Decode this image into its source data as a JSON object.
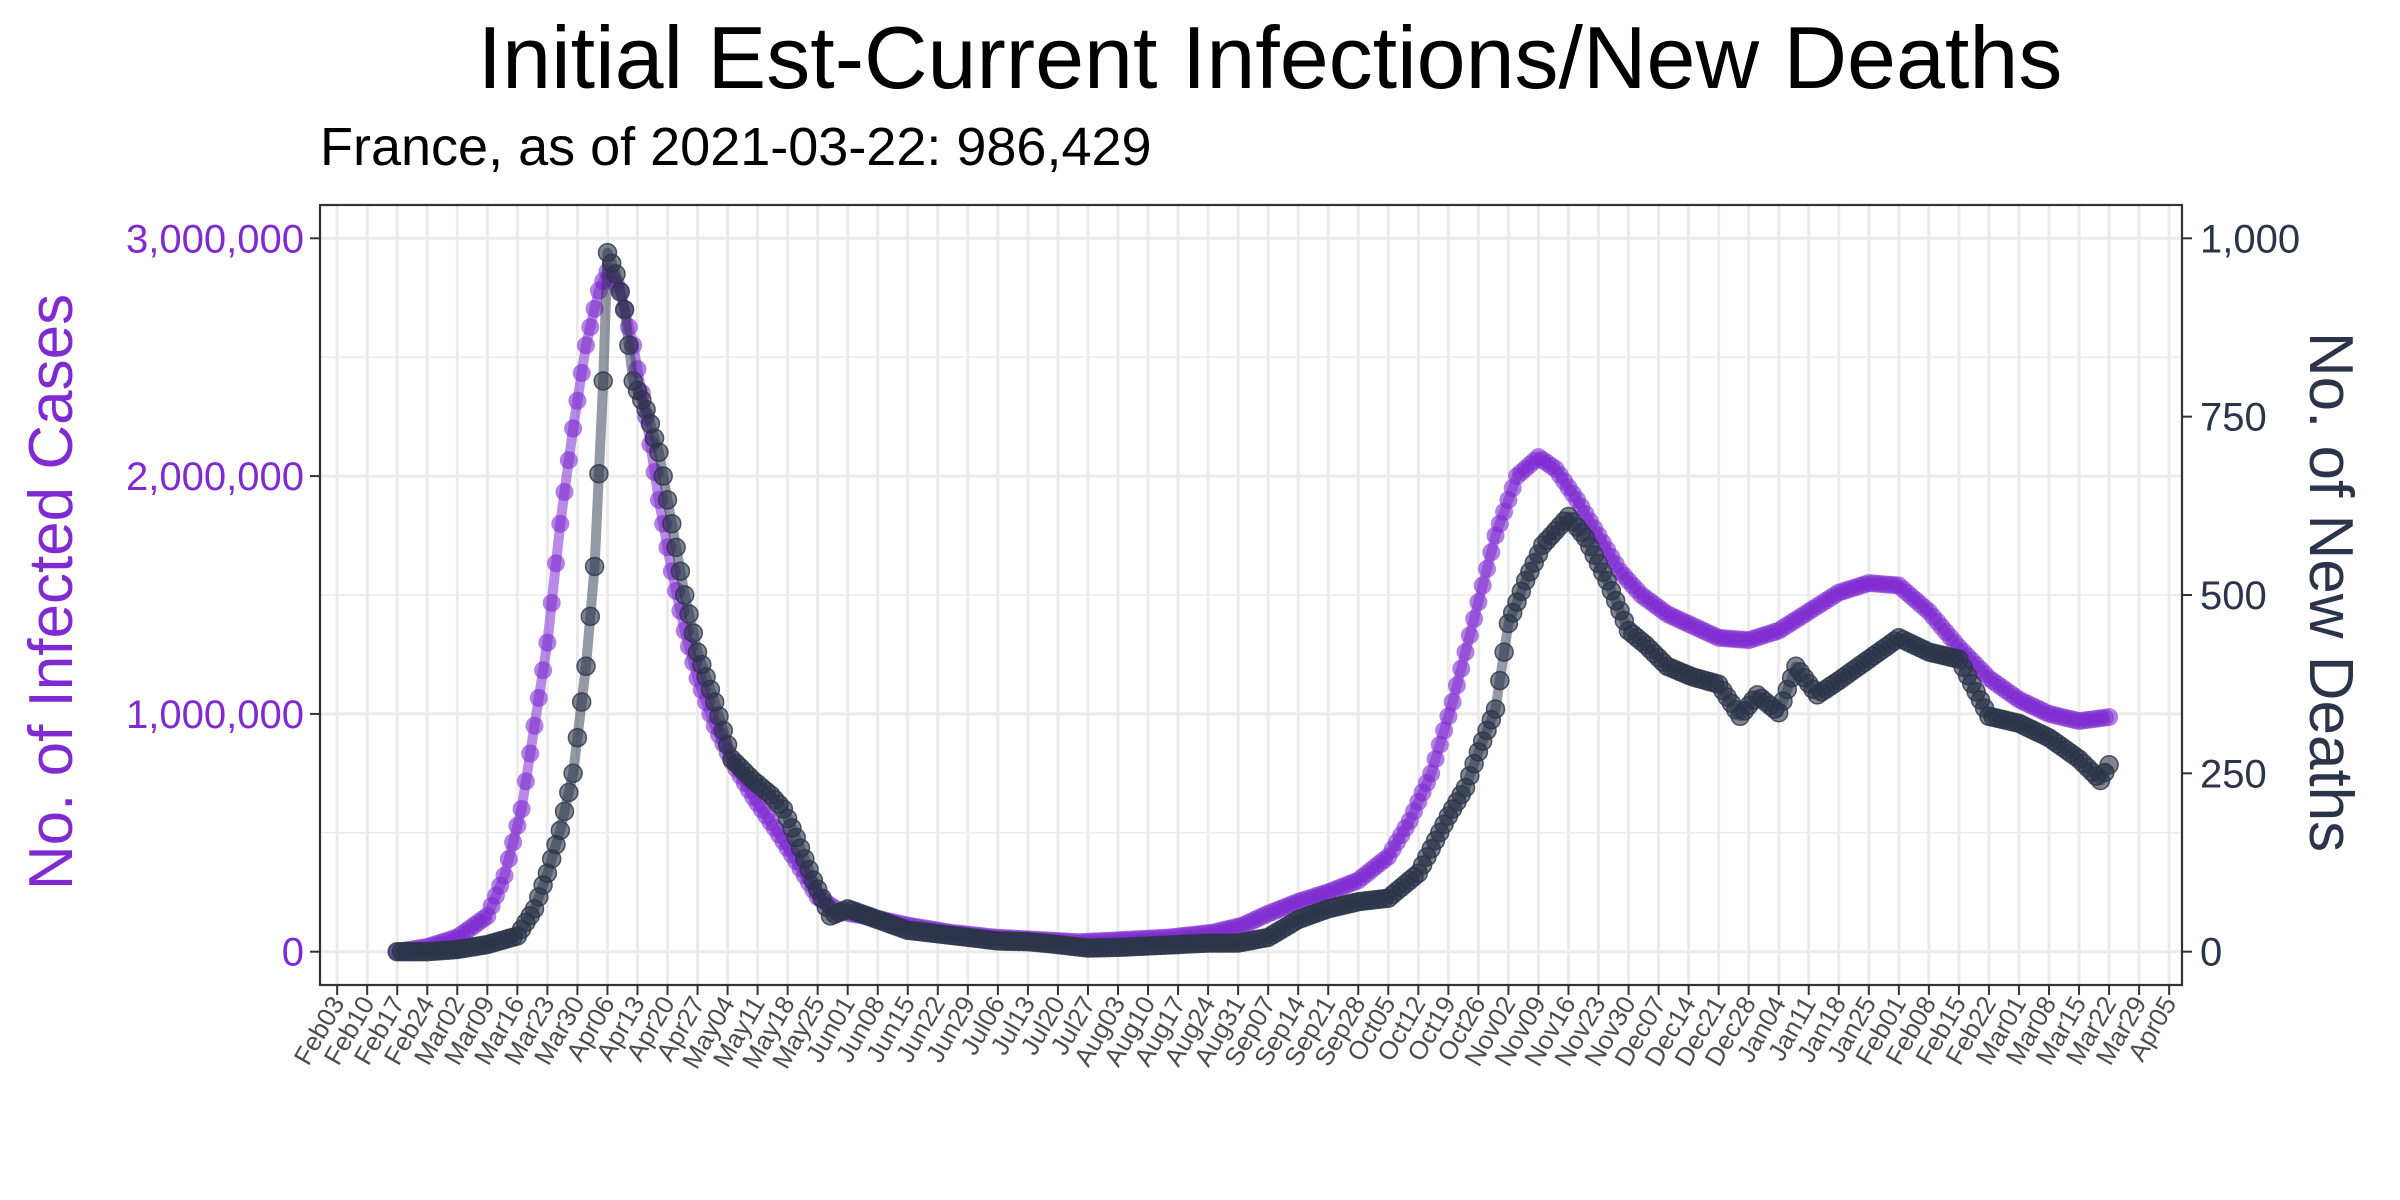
{
  "colors": {
    "infections": "#7f2bd1",
    "deaths": "#2c3449",
    "grid": "#ebebeb",
    "panel_border": "#333333"
  },
  "chart_data": {
    "type": "line",
    "title": "Initial Est-Current Infections/New Deaths",
    "subtitle": "France, as of 2021-03-22:  986,429",
    "ylabel_left": "No. of Infected Cases",
    "ylabel_right": "No. of New Deaths",
    "xlabel": "",
    "x_range": [
      "2020-01-30",
      "2021-04-08"
    ],
    "ylim_left": [
      -140000,
      3140000
    ],
    "ylim_right": [
      -46.7,
      1046.7
    ],
    "yticks_left": [
      0,
      1000000,
      2000000,
      3000000
    ],
    "yticks_left_labels": [
      "0",
      "1,000,000",
      "2,000,000",
      "3,000,000"
    ],
    "yticks_right": [
      0,
      250,
      500,
      750,
      1000
    ],
    "yticks_right_labels": [
      "0",
      "250",
      "500",
      "750",
      "1,000"
    ],
    "xticks": [
      "2020-02-03",
      "2020-02-10",
      "2020-02-17",
      "2020-02-24",
      "2020-03-02",
      "2020-03-09",
      "2020-03-16",
      "2020-03-23",
      "2020-03-30",
      "2020-04-06",
      "2020-04-13",
      "2020-04-20",
      "2020-04-27",
      "2020-05-04",
      "2020-05-11",
      "2020-05-18",
      "2020-05-25",
      "2020-06-01",
      "2020-06-08",
      "2020-06-15",
      "2020-06-22",
      "2020-06-29",
      "2020-07-06",
      "2020-07-13",
      "2020-07-20",
      "2020-07-27",
      "2020-08-03",
      "2020-08-10",
      "2020-08-17",
      "2020-08-24",
      "2020-08-31",
      "2020-09-07",
      "2020-09-14",
      "2020-09-21",
      "2020-09-28",
      "2020-10-05",
      "2020-10-12",
      "2020-10-19",
      "2020-10-26",
      "2020-11-02",
      "2020-11-09",
      "2020-11-16",
      "2020-11-23",
      "2020-11-30",
      "2020-12-07",
      "2020-12-14",
      "2020-12-21",
      "2020-12-28",
      "2021-01-04",
      "2021-01-11",
      "2021-01-18",
      "2021-01-25",
      "2021-02-01",
      "2021-02-08",
      "2021-02-15",
      "2021-02-22",
      "2021-03-01",
      "2021-03-08",
      "2021-03-15",
      "2021-03-22",
      "2021-03-29",
      "2021-04-05"
    ],
    "xtick_labels": [
      "Feb03",
      "Feb10",
      "Feb17",
      "Feb24",
      "Mar02",
      "Mar09",
      "Mar16",
      "Mar23",
      "Mar30",
      "Apr06",
      "Apr13",
      "Apr20",
      "Apr27",
      "May04",
      "May11",
      "May18",
      "May25",
      "Jun01",
      "Jun08",
      "Jun15",
      "Jun22",
      "Jun29",
      "Jul06",
      "Jul13",
      "Jul20",
      "Jul27",
      "Aug03",
      "Aug10",
      "Aug17",
      "Aug24",
      "Aug31",
      "Sep07",
      "Sep14",
      "Sep21",
      "Sep28",
      "Oct05",
      "Oct12",
      "Oct19",
      "Oct26",
      "Nov02",
      "Nov09",
      "Nov16",
      "Nov23",
      "Nov30",
      "Dec07",
      "Dec14",
      "Dec21",
      "Dec28",
      "Jan04",
      "Jan11",
      "Jan18",
      "Jan25",
      "Feb01",
      "Feb08",
      "Feb15",
      "Feb22",
      "Mar01",
      "Mar08",
      "Mar15",
      "Mar22",
      "Mar29",
      "Apr05"
    ],
    "grid": true,
    "legend": "none",
    "series": [
      {
        "axis": "left",
        "points": [
          [
            "2020-02-17",
            0
          ],
          [
            "2020-02-24",
            20000
          ],
          [
            "2020-03-02",
            60000
          ],
          [
            "2020-03-09",
            150000
          ],
          [
            "2020-03-13",
            320000
          ],
          [
            "2020-03-17",
            600000
          ],
          [
            "2020-03-20",
            950000
          ],
          [
            "2020-03-23",
            1300000
          ],
          [
            "2020-03-26",
            1800000
          ],
          [
            "2020-03-29",
            2200000
          ],
          [
            "2020-04-01",
            2550000
          ],
          [
            "2020-04-04",
            2780000
          ],
          [
            "2020-04-06",
            2860000
          ],
          [
            "2020-04-09",
            2780000
          ],
          [
            "2020-04-12",
            2550000
          ],
          [
            "2020-04-15",
            2250000
          ],
          [
            "2020-04-18",
            1900000
          ],
          [
            "2020-04-21",
            1600000
          ],
          [
            "2020-04-24",
            1350000
          ],
          [
            "2020-04-27",
            1150000
          ],
          [
            "2020-05-01",
            950000
          ],
          [
            "2020-05-05",
            800000
          ],
          [
            "2020-05-10",
            650000
          ],
          [
            "2020-05-15",
            520000
          ],
          [
            "2020-05-20",
            380000
          ],
          [
            "2020-05-25",
            230000
          ],
          [
            "2020-05-30",
            170000
          ],
          [
            "2020-06-05",
            150000
          ],
          [
            "2020-06-15",
            110000
          ],
          [
            "2020-06-25",
            80000
          ],
          [
            "2020-07-05",
            60000
          ],
          [
            "2020-07-15",
            50000
          ],
          [
            "2020-07-25",
            40000
          ],
          [
            "2020-08-05",
            50000
          ],
          [
            "2020-08-15",
            60000
          ],
          [
            "2020-08-25",
            80000
          ],
          [
            "2020-09-01",
            110000
          ],
          [
            "2020-09-07",
            160000
          ],
          [
            "2020-09-14",
            210000
          ],
          [
            "2020-09-21",
            250000
          ],
          [
            "2020-09-28",
            300000
          ],
          [
            "2020-10-05",
            400000
          ],
          [
            "2020-10-10",
            550000
          ],
          [
            "2020-10-15",
            750000
          ],
          [
            "2020-10-20",
            1050000
          ],
          [
            "2020-10-25",
            1400000
          ],
          [
            "2020-10-30",
            1750000
          ],
          [
            "2020-11-04",
            2000000
          ],
          [
            "2020-11-09",
            2080000
          ],
          [
            "2020-11-13",
            2030000
          ],
          [
            "2020-11-18",
            1900000
          ],
          [
            "2020-11-23",
            1750000
          ],
          [
            "2020-11-28",
            1600000
          ],
          [
            "2020-12-03",
            1500000
          ],
          [
            "2020-12-09",
            1420000
          ],
          [
            "2020-12-15",
            1370000
          ],
          [
            "2020-12-21",
            1320000
          ],
          [
            "2020-12-28",
            1310000
          ],
          [
            "2021-01-04",
            1350000
          ],
          [
            "2021-01-11",
            1430000
          ],
          [
            "2021-01-18",
            1510000
          ],
          [
            "2021-01-25",
            1550000
          ],
          [
            "2021-02-01",
            1540000
          ],
          [
            "2021-02-08",
            1430000
          ],
          [
            "2021-02-15",
            1280000
          ],
          [
            "2021-02-22",
            1150000
          ],
          [
            "2021-03-01",
            1060000
          ],
          [
            "2021-03-08",
            1000000
          ],
          [
            "2021-03-15",
            970000
          ],
          [
            "2021-03-22",
            986429
          ]
        ]
      },
      {
        "axis": "right",
        "points": [
          [
            "2020-02-17",
            0
          ],
          [
            "2020-02-24",
            0
          ],
          [
            "2020-03-02",
            3
          ],
          [
            "2020-03-09",
            10
          ],
          [
            "2020-03-16",
            22
          ],
          [
            "2020-03-20",
            60
          ],
          [
            "2020-03-23",
            110
          ],
          [
            "2020-03-26",
            170
          ],
          [
            "2020-03-29",
            250
          ],
          [
            "2020-04-01",
            400
          ],
          [
            "2020-04-03",
            540
          ],
          [
            "2020-04-05",
            800
          ],
          [
            "2020-04-06",
            980
          ],
          [
            "2020-04-08",
            950
          ],
          [
            "2020-04-10",
            900
          ],
          [
            "2020-04-12",
            800
          ],
          [
            "2020-04-15",
            760
          ],
          [
            "2020-04-18",
            700
          ],
          [
            "2020-04-21",
            600
          ],
          [
            "2020-04-24",
            500
          ],
          [
            "2020-04-27",
            420
          ],
          [
            "2020-05-01",
            350
          ],
          [
            "2020-05-05",
            270
          ],
          [
            "2020-05-10",
            240
          ],
          [
            "2020-05-14",
            220
          ],
          [
            "2020-05-17",
            200
          ],
          [
            "2020-05-20",
            160
          ],
          [
            "2020-05-24",
            100
          ],
          [
            "2020-05-28",
            50
          ],
          [
            "2020-06-01",
            60
          ],
          [
            "2020-06-08",
            45
          ],
          [
            "2020-06-15",
            30
          ],
          [
            "2020-06-22",
            25
          ],
          [
            "2020-06-29",
            20
          ],
          [
            "2020-07-06",
            15
          ],
          [
            "2020-07-13",
            14
          ],
          [
            "2020-07-20",
            10
          ],
          [
            "2020-07-27",
            5
          ],
          [
            "2020-08-03",
            6
          ],
          [
            "2020-08-10",
            8
          ],
          [
            "2020-08-17",
            10
          ],
          [
            "2020-08-24",
            12
          ],
          [
            "2020-08-31",
            12
          ],
          [
            "2020-09-07",
            20
          ],
          [
            "2020-09-14",
            45
          ],
          [
            "2020-09-21",
            60
          ],
          [
            "2020-09-28",
            70
          ],
          [
            "2020-10-05",
            75
          ],
          [
            "2020-10-12",
            110
          ],
          [
            "2020-10-19",
            190
          ],
          [
            "2020-10-23",
            230
          ],
          [
            "2020-10-26",
            280
          ],
          [
            "2020-10-30",
            340
          ],
          [
            "2020-11-02",
            460
          ],
          [
            "2020-11-06",
            520
          ],
          [
            "2020-11-10",
            570
          ],
          [
            "2020-11-16",
            610
          ],
          [
            "2020-11-20",
            580
          ],
          [
            "2020-11-25",
            520
          ],
          [
            "2020-11-30",
            450
          ],
          [
            "2020-12-04",
            430
          ],
          [
            "2020-12-09",
            400
          ],
          [
            "2020-12-15",
            385
          ],
          [
            "2020-12-21",
            375
          ],
          [
            "2020-12-26",
            330
          ],
          [
            "2020-12-30",
            360
          ],
          [
            "2021-01-04",
            335
          ],
          [
            "2021-01-08",
            400
          ],
          [
            "2021-01-13",
            360
          ],
          [
            "2021-01-18",
            380
          ],
          [
            "2021-01-25",
            410
          ],
          [
            "2021-02-01",
            440
          ],
          [
            "2021-02-08",
            420
          ],
          [
            "2021-02-15",
            410
          ],
          [
            "2021-02-22",
            330
          ],
          [
            "2021-03-01",
            320
          ],
          [
            "2021-03-08",
            300
          ],
          [
            "2021-03-15",
            270
          ],
          [
            "2021-03-20",
            240
          ],
          [
            "2021-03-22",
            262
          ]
        ]
      }
    ]
  }
}
